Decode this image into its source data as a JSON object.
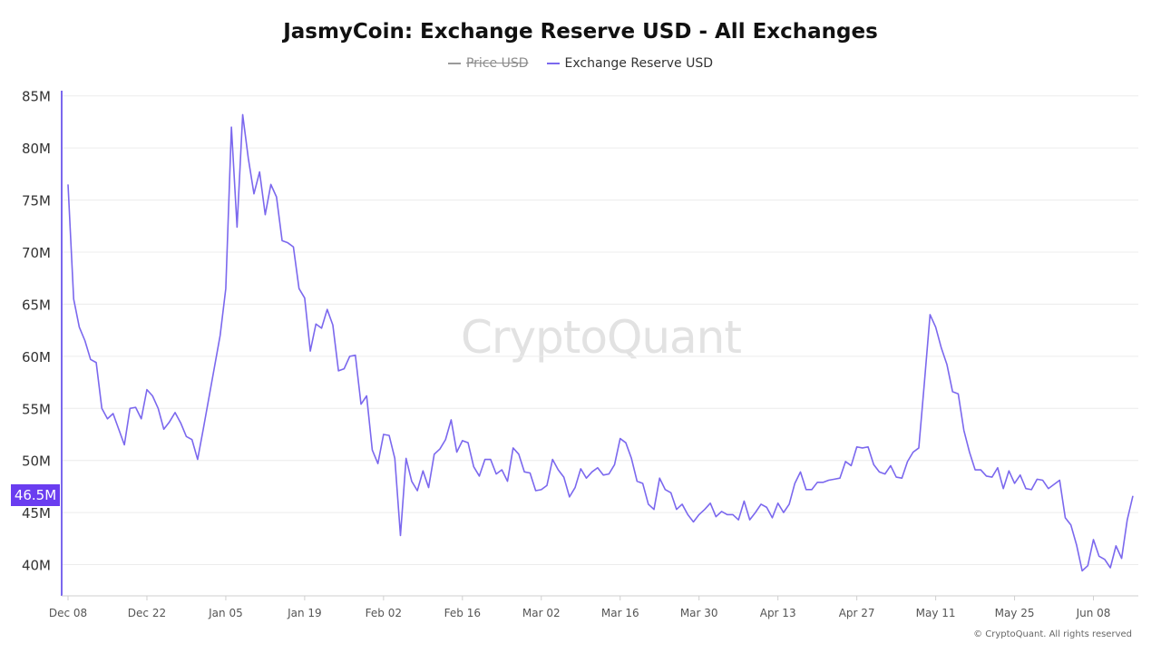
{
  "chart_data": {
    "type": "line",
    "title": "JasmyCoin: Exchange Reserve USD - All Exchanges",
    "legend": [
      {
        "name": "Price USD",
        "color": "#9a9a9a",
        "enabled": false
      },
      {
        "name": "Exchange Reserve USD",
        "color": "#7b68ee",
        "enabled": true
      }
    ],
    "legend_position": "top-center",
    "ylim": [
      37000000,
      85500000
    ],
    "y_ticks": [
      {
        "value": 40000000,
        "label": "40M"
      },
      {
        "value": 45000000,
        "label": "45M"
      },
      {
        "value": 50000000,
        "label": "50M"
      },
      {
        "value": 55000000,
        "label": "55M"
      },
      {
        "value": 60000000,
        "label": "60M"
      },
      {
        "value": 65000000,
        "label": "65M"
      },
      {
        "value": 70000000,
        "label": "70M"
      },
      {
        "value": 75000000,
        "label": "75M"
      },
      {
        "value": 80000000,
        "label": "80M"
      },
      {
        "value": 85000000,
        "label": "85M"
      }
    ],
    "x_ticks": [
      "Dec 08",
      "Dec 22",
      "Jan 05",
      "Jan 19",
      "Feb 02",
      "Feb 16",
      "Mar 02",
      "Mar 16",
      "Mar 30",
      "Apr 13",
      "Apr 27",
      "May 11",
      "May 25",
      "Jun 08"
    ],
    "x_tick_day_step": 14,
    "grid": "horizontal",
    "current_value_label": "46.5M",
    "series": [
      {
        "name": "Exchange Reserve USD",
        "color": "#7b68ee",
        "values": [
          76.5,
          65.5,
          62.8,
          61.5,
          59.7,
          59.4,
          55.0,
          54.0,
          54.5,
          53.0,
          51.5,
          55.0,
          55.1,
          54.0,
          56.8,
          56.2,
          55.0,
          53.0,
          53.7,
          54.6,
          53.6,
          52.3,
          52.0,
          50.1,
          53.0,
          56.0,
          59.0,
          62.0,
          66.5,
          82.0,
          72.4,
          83.2,
          79.0,
          75.6,
          77.7,
          73.6,
          76.5,
          75.3,
          71.1,
          70.9,
          70.5,
          66.5,
          65.6,
          60.5,
          63.1,
          62.7,
          64.5,
          63.0,
          58.6,
          58.8,
          60.0,
          60.1,
          55.4,
          56.2,
          51.0,
          49.7,
          52.5,
          52.4,
          50.2,
          42.8,
          50.2,
          48.0,
          47.1,
          49.0,
          47.4,
          50.6,
          51.1,
          52.0,
          53.9,
          50.8,
          51.9,
          51.7,
          49.4,
          48.5,
          50.1,
          50.1,
          48.7,
          49.1,
          48.0,
          51.2,
          50.6,
          48.9,
          48.8,
          47.1,
          47.2,
          47.6,
          50.1,
          49.1,
          48.4,
          46.5,
          47.4,
          49.2,
          48.3,
          48.9,
          49.3,
          48.6,
          48.7,
          49.6,
          52.1,
          51.7,
          50.2,
          48.0,
          47.8,
          45.8,
          45.3,
          48.3,
          47.2,
          46.9,
          45.3,
          45.8,
          44.8,
          44.1,
          44.8,
          45.3,
          45.9,
          44.6,
          45.1,
          44.8,
          44.8,
          44.3,
          46.1,
          44.3,
          45.0,
          45.8,
          45.5,
          44.5,
          45.9,
          45.0,
          45.8,
          47.8,
          48.9,
          47.2,
          47.2,
          47.9,
          47.9,
          48.1,
          48.2,
          48.3,
          49.9,
          49.5,
          51.3,
          51.2,
          51.3,
          49.6,
          48.9,
          48.7,
          49.5,
          48.4,
          48.3,
          49.9,
          50.8,
          51.2,
          57.5,
          64.0,
          62.8,
          60.8,
          59.2,
          56.6,
          56.4,
          52.9,
          50.8,
          49.1,
          49.1,
          48.5,
          48.4,
          49.3,
          47.3,
          49.0,
          47.8,
          48.6,
          47.3,
          47.2,
          48.2,
          48.1,
          47.3,
          47.7,
          48.1,
          44.5,
          43.8,
          41.9,
          39.4,
          39.9,
          42.4,
          40.8,
          40.5,
          39.7,
          41.8,
          40.6,
          44.3,
          46.6
        ]
      }
    ],
    "watermark": "CryptoQuant",
    "credits": "© CryptoQuant. All rights reserved"
  }
}
